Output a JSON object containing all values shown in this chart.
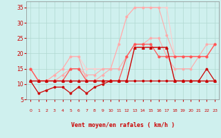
{
  "x": [
    0,
    1,
    2,
    3,
    4,
    5,
    6,
    7,
    8,
    9,
    10,
    11,
    12,
    13,
    14,
    15,
    16,
    17,
    18,
    19,
    20,
    21,
    22,
    23
  ],
  "s1_flat_dark": [
    11,
    11,
    11,
    11,
    11,
    11,
    11,
    11,
    11,
    11,
    11,
    11,
    11,
    22,
    22,
    22,
    22,
    22,
    11,
    11,
    11,
    11,
    11,
    11
  ],
  "s2_medium": [
    15,
    11,
    11,
    11,
    11,
    15,
    15,
    11,
    11,
    11,
    11,
    11,
    19,
    23,
    23,
    23,
    19,
    19,
    19,
    19,
    19,
    19,
    19,
    23
  ],
  "s3_upper_gust": [
    15,
    11,
    11,
    13,
    15,
    19,
    19,
    15,
    15,
    15,
    15,
    23,
    32,
    35,
    35,
    35,
    35,
    35,
    19,
    19,
    19,
    19,
    19,
    23
  ],
  "s4_pink_upper": [
    15,
    11,
    11,
    13,
    15,
    19,
    19,
    11,
    11,
    13,
    15,
    23,
    32,
    35,
    35,
    35,
    35,
    26,
    19,
    19,
    19,
    19,
    23,
    23
  ],
  "s5_wavy_bottom": [
    11,
    7,
    8,
    9,
    9,
    7,
    9,
    7,
    9,
    10,
    11,
    11,
    11,
    11,
    11,
    11,
    11,
    11,
    11,
    11,
    11,
    11,
    15,
    11
  ],
  "s6_rising": [
    15,
    11,
    11,
    11,
    13,
    15,
    15,
    13,
    13,
    15,
    15,
    15,
    19,
    23,
    23,
    25,
    25,
    19,
    15,
    15,
    15,
    19,
    19,
    23
  ],
  "xlabel": "Vent moyen/en rafales ( km/h )",
  "ylim": [
    5,
    37
  ],
  "yticks": [
    5,
    10,
    15,
    20,
    25,
    30,
    35
  ],
  "xlim": [
    -0.5,
    23.5
  ],
  "bg_color": "#cff0ee",
  "grid_color": "#b0d8d0",
  "col_darkred": "#cc0000",
  "col_medred": "#ff5555",
  "col_pink1": "#ffaaaa",
  "col_pink2": "#ffcccc",
  "arrows": [
    "↗",
    "↑",
    "↗",
    "↗",
    "↗",
    "↗",
    "↗",
    "↗",
    "↗",
    "↑",
    "↗",
    "↗",
    "↗",
    "↗",
    "↗",
    "↗",
    "↗",
    "↗",
    "↗",
    "↗",
    "↑",
    "↗",
    "↙",
    "↙"
  ]
}
